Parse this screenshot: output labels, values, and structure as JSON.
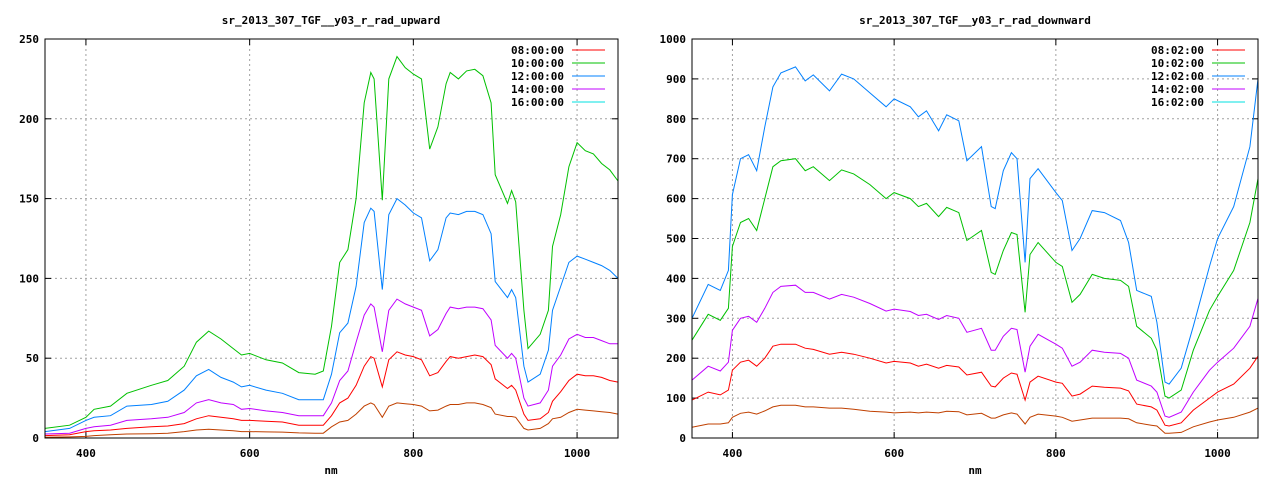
{
  "chart_data": [
    {
      "type": "line",
      "title": "sr_2013_307_TGF__y03_r_rad_upward",
      "xlabel": "nm",
      "ylabel": "",
      "xlim": [
        350,
        1050
      ],
      "ylim": [
        0,
        250
      ],
      "xticks": [
        400,
        600,
        800,
        1000
      ],
      "yticks": [
        0,
        50,
        100,
        150,
        200,
        250
      ],
      "grid": true,
      "legend_position": "top-right",
      "x": [
        350,
        380,
        400,
        410,
        430,
        450,
        480,
        500,
        520,
        535,
        550,
        565,
        580,
        590,
        600,
        620,
        640,
        660,
        680,
        690,
        700,
        710,
        720,
        730,
        740,
        748,
        752,
        762,
        770,
        780,
        790,
        800,
        810,
        820,
        830,
        840,
        845,
        855,
        865,
        875,
        885,
        895,
        900,
        915,
        920,
        925,
        935,
        940,
        955,
        965,
        970,
        980,
        990,
        1000,
        1010,
        1020,
        1030,
        1040,
        1050
      ],
      "series": [
        {
          "name": "08:00:00",
          "legend_color": "#ff0000",
          "line_color": "#ff0000",
          "values": [
            1.5,
            2,
            4,
            4.5,
            5,
            6,
            7,
            7.5,
            9,
            12,
            14,
            13,
            12,
            11,
            11,
            10.5,
            10,
            8,
            8,
            8,
            14,
            22,
            25,
            33,
            45,
            51,
            50,
            32,
            49,
            54,
            52,
            51,
            49,
            39,
            41,
            48,
            51,
            50,
            51,
            52,
            51,
            46,
            37,
            31,
            33,
            30,
            15,
            11,
            12,
            16,
            23,
            29,
            36,
            40,
            39,
            39,
            38,
            36,
            35
          ]
        },
        {
          "name": "10:00:00",
          "legend_color": "#00c000",
          "line_color": "#00c000",
          "values": [
            6,
            8,
            13,
            18,
            20,
            28,
            33,
            36,
            45,
            60,
            67,
            62,
            56,
            52,
            53,
            49,
            47,
            41,
            40,
            42,
            70,
            110,
            118,
            150,
            210,
            229,
            225,
            149,
            225,
            239,
            232,
            228,
            225,
            181,
            195,
            222,
            229,
            225,
            230,
            231,
            227,
            210,
            165,
            147,
            155,
            148,
            80,
            56,
            65,
            80,
            120,
            140,
            170,
            185,
            180,
            178,
            172,
            168,
            161
          ]
        },
        {
          "name": "12:00:00",
          "legend_color": "#0080ff",
          "line_color": "#0080ff",
          "values": [
            4,
            6,
            11,
            13,
            14,
            20,
            21,
            23,
            30,
            39,
            43,
            38,
            35,
            32,
            33,
            30,
            28,
            24,
            24,
            24,
            40,
            66,
            72,
            95,
            135,
            144,
            142,
            93,
            140,
            150,
            146,
            141,
            138,
            111,
            118,
            138,
            141,
            140,
            142,
            142,
            140,
            128,
            98,
            88,
            93,
            88,
            45,
            35,
            40,
            55,
            80,
            95,
            110,
            114,
            112,
            110,
            108,
            105,
            100
          ]
        },
        {
          "name": "14:00:00",
          "legend_color": "#c000ff",
          "line_color": "#c000ff",
          "values": [
            2.5,
            3,
            6,
            7,
            8,
            11,
            12,
            13,
            16,
            22,
            24,
            22,
            21,
            18,
            18.5,
            17,
            16,
            14,
            14,
            14,
            22,
            36,
            42,
            60,
            77,
            84,
            82,
            54,
            80,
            87,
            84,
            82,
            80,
            64,
            68,
            78,
            82,
            81,
            82,
            82,
            81,
            74,
            58,
            50,
            53,
            50,
            25,
            20,
            22,
            30,
            45,
            52,
            62,
            65,
            63,
            63,
            61,
            59,
            59
          ]
        },
        {
          "name": "16:00:00",
          "legend_color": "#00e0e0",
          "line_color": "#c04000",
          "values": [
            0.5,
            0.7,
            1,
            1.5,
            2,
            2.5,
            2.7,
            3,
            4,
            5,
            5.5,
            5,
            4.5,
            4,
            4,
            3.8,
            3.7,
            3.2,
            3,
            3,
            7,
            10,
            11,
            15,
            20,
            22,
            21,
            13,
            20,
            22,
            21.5,
            21,
            20,
            17,
            17.5,
            20,
            21,
            21,
            22,
            22,
            21,
            19,
            15,
            13.5,
            13.5,
            13,
            6,
            5,
            6,
            9,
            12,
            13,
            16,
            18,
            17.5,
            17,
            16.5,
            16,
            15
          ]
        }
      ]
    },
    {
      "type": "line",
      "title": "sr_2013_307_TGF__y03_r_rad_downward",
      "xlabel": "nm",
      "ylabel": "",
      "xlim": [
        350,
        1050
      ],
      "ylim": [
        0,
        1000
      ],
      "xticks": [
        400,
        600,
        800,
        1000
      ],
      "yticks": [
        0,
        100,
        200,
        300,
        400,
        500,
        600,
        700,
        800,
        900,
        1000
      ],
      "grid": true,
      "legend_position": "top-right",
      "x": [
        350,
        370,
        385,
        395,
        400,
        410,
        420,
        430,
        440,
        450,
        460,
        478,
        490,
        500,
        520,
        535,
        550,
        570,
        590,
        600,
        620,
        630,
        640,
        655,
        665,
        680,
        690,
        708,
        720,
        725,
        735,
        745,
        752,
        762,
        768,
        778,
        800,
        808,
        820,
        830,
        845,
        860,
        880,
        890,
        900,
        918,
        925,
        935,
        940,
        955,
        970,
        990,
        1000,
        1020,
        1040,
        1050
      ],
      "series": [
        {
          "name": "08:02:00",
          "legend_color": "#ff0000",
          "line_color": "#ff0000",
          "values": [
            95,
            115,
            108,
            120,
            170,
            190,
            195,
            180,
            200,
            230,
            235,
            235,
            225,
            222,
            210,
            215,
            210,
            200,
            188,
            192,
            188,
            180,
            185,
            175,
            182,
            178,
            158,
            165,
            130,
            128,
            150,
            163,
            160,
            95,
            140,
            155,
            140,
            137,
            105,
            110,
            130,
            127,
            125,
            118,
            85,
            78,
            70,
            32,
            30,
            38,
            70,
            100,
            115,
            135,
            175,
            205
          ]
        },
        {
          "name": "10:02:00",
          "legend_color": "#00c000",
          "line_color": "#00c000",
          "values": [
            245,
            310,
            295,
            325,
            480,
            540,
            550,
            520,
            600,
            680,
            695,
            700,
            670,
            680,
            645,
            672,
            662,
            635,
            600,
            615,
            600,
            580,
            588,
            555,
            578,
            565,
            495,
            520,
            415,
            410,
            470,
            515,
            510,
            315,
            460,
            490,
            440,
            430,
            340,
            360,
            410,
            400,
            395,
            380,
            280,
            250,
            220,
            105,
            100,
            120,
            220,
            320,
            355,
            420,
            540,
            650
          ]
        },
        {
          "name": "12:02:00",
          "legend_color": "#0080ff",
          "line_color": "#0080ff",
          "values": [
            300,
            385,
            370,
            420,
            610,
            700,
            710,
            670,
            780,
            880,
            915,
            930,
            895,
            910,
            870,
            912,
            900,
            865,
            830,
            850,
            830,
            805,
            820,
            770,
            810,
            795,
            695,
            730,
            580,
            575,
            670,
            715,
            700,
            440,
            650,
            675,
            615,
            595,
            470,
            500,
            570,
            565,
            545,
            490,
            370,
            355,
            290,
            140,
            135,
            175,
            280,
            430,
            500,
            580,
            730,
            900
          ]
        },
        {
          "name": "14:02:00",
          "legend_color": "#c000ff",
          "line_color": "#c000ff",
          "values": [
            145,
            180,
            168,
            190,
            270,
            300,
            305,
            290,
            325,
            365,
            380,
            383,
            365,
            365,
            348,
            360,
            353,
            337,
            318,
            323,
            317,
            307,
            310,
            297,
            307,
            300,
            265,
            275,
            220,
            220,
            255,
            275,
            272,
            165,
            230,
            260,
            235,
            225,
            180,
            190,
            220,
            215,
            212,
            200,
            145,
            130,
            115,
            55,
            52,
            65,
            115,
            170,
            190,
            225,
            280,
            350
          ]
        },
        {
          "name": "16:02:00",
          "legend_color": "#00e0e0",
          "line_color": "#c04000",
          "values": [
            27,
            35,
            35,
            38,
            52,
            62,
            65,
            60,
            68,
            78,
            82,
            82,
            78,
            78,
            75,
            75,
            72,
            67,
            65,
            63,
            65,
            63,
            65,
            63,
            67,
            66,
            58,
            62,
            50,
            50,
            58,
            63,
            60,
            35,
            52,
            60,
            55,
            52,
            42,
            45,
            50,
            50,
            50,
            48,
            38,
            32,
            30,
            12,
            12,
            14,
            28,
            40,
            45,
            52,
            65,
            75
          ]
        }
      ]
    }
  ]
}
